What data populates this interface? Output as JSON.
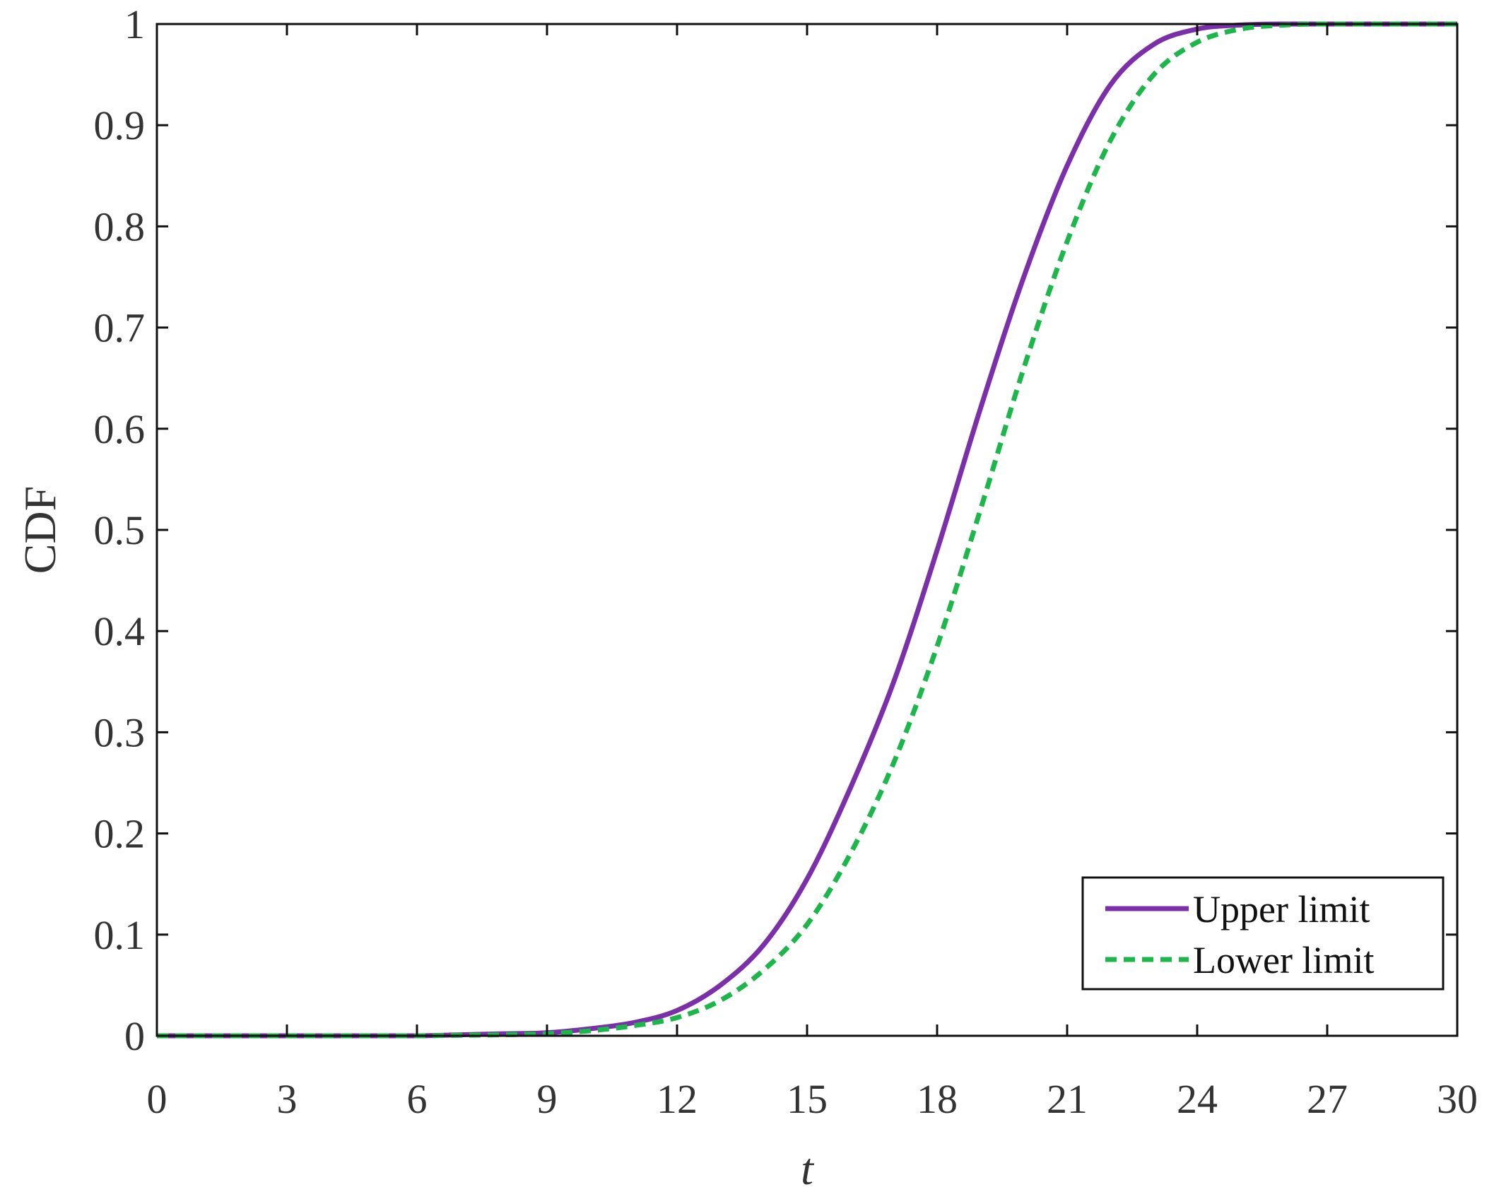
{
  "chart_data": {
    "type": "line",
    "title": "",
    "xlabel": "t",
    "ylabel": "CDF",
    "xlim": [
      0,
      30
    ],
    "ylim": [
      0,
      1
    ],
    "xticks": [
      0,
      3,
      6,
      9,
      12,
      15,
      18,
      21,
      24,
      27,
      30
    ],
    "yticks": [
      0,
      0.1,
      0.2,
      0.3,
      0.4,
      0.5,
      0.6,
      0.7,
      0.8,
      0.9,
      1
    ],
    "xtick_labels": [
      "0",
      "3",
      "6",
      "9",
      "12",
      "15",
      "18",
      "21",
      "24",
      "27",
      "30"
    ],
    "ytick_labels": [
      "0",
      "0.1",
      "0.2",
      "0.3",
      "0.4",
      "0.5",
      "0.6",
      "0.7",
      "0.8",
      "0.9",
      "1"
    ],
    "grid": false,
    "legend_position": "bottom-right",
    "series": [
      {
        "name": "Upper limit",
        "color": "#7B2FA8",
        "line_style": "solid",
        "x": [
          0,
          3,
          6,
          7,
          8,
          9,
          10,
          11,
          12,
          13,
          14,
          15,
          16,
          17,
          18,
          19,
          20,
          21,
          22,
          23,
          24,
          25,
          26,
          27,
          28,
          29,
          30
        ],
        "y": [
          0,
          0,
          0,
          0.001,
          0.002,
          0.003,
          0.007,
          0.013,
          0.025,
          0.05,
          0.09,
          0.155,
          0.245,
          0.35,
          0.48,
          0.62,
          0.75,
          0.86,
          0.94,
          0.98,
          0.995,
          0.999,
          1,
          1,
          1,
          1,
          1
        ]
      },
      {
        "name": "Lower limit",
        "color": "#1DB64B",
        "line_style": "dashed",
        "x": [
          0,
          3,
          6,
          7,
          8,
          9,
          10,
          11,
          12,
          13,
          14,
          15,
          16,
          17,
          18,
          19,
          20,
          21,
          22,
          23,
          24,
          25,
          26,
          27,
          28,
          29,
          30
        ],
        "y": [
          0,
          0,
          0,
          0.0005,
          0.001,
          0.002,
          0.005,
          0.01,
          0.018,
          0.035,
          0.065,
          0.11,
          0.18,
          0.27,
          0.385,
          0.52,
          0.66,
          0.785,
          0.885,
          0.95,
          0.982,
          0.995,
          0.999,
          1,
          1,
          1,
          1
        ]
      }
    ]
  }
}
